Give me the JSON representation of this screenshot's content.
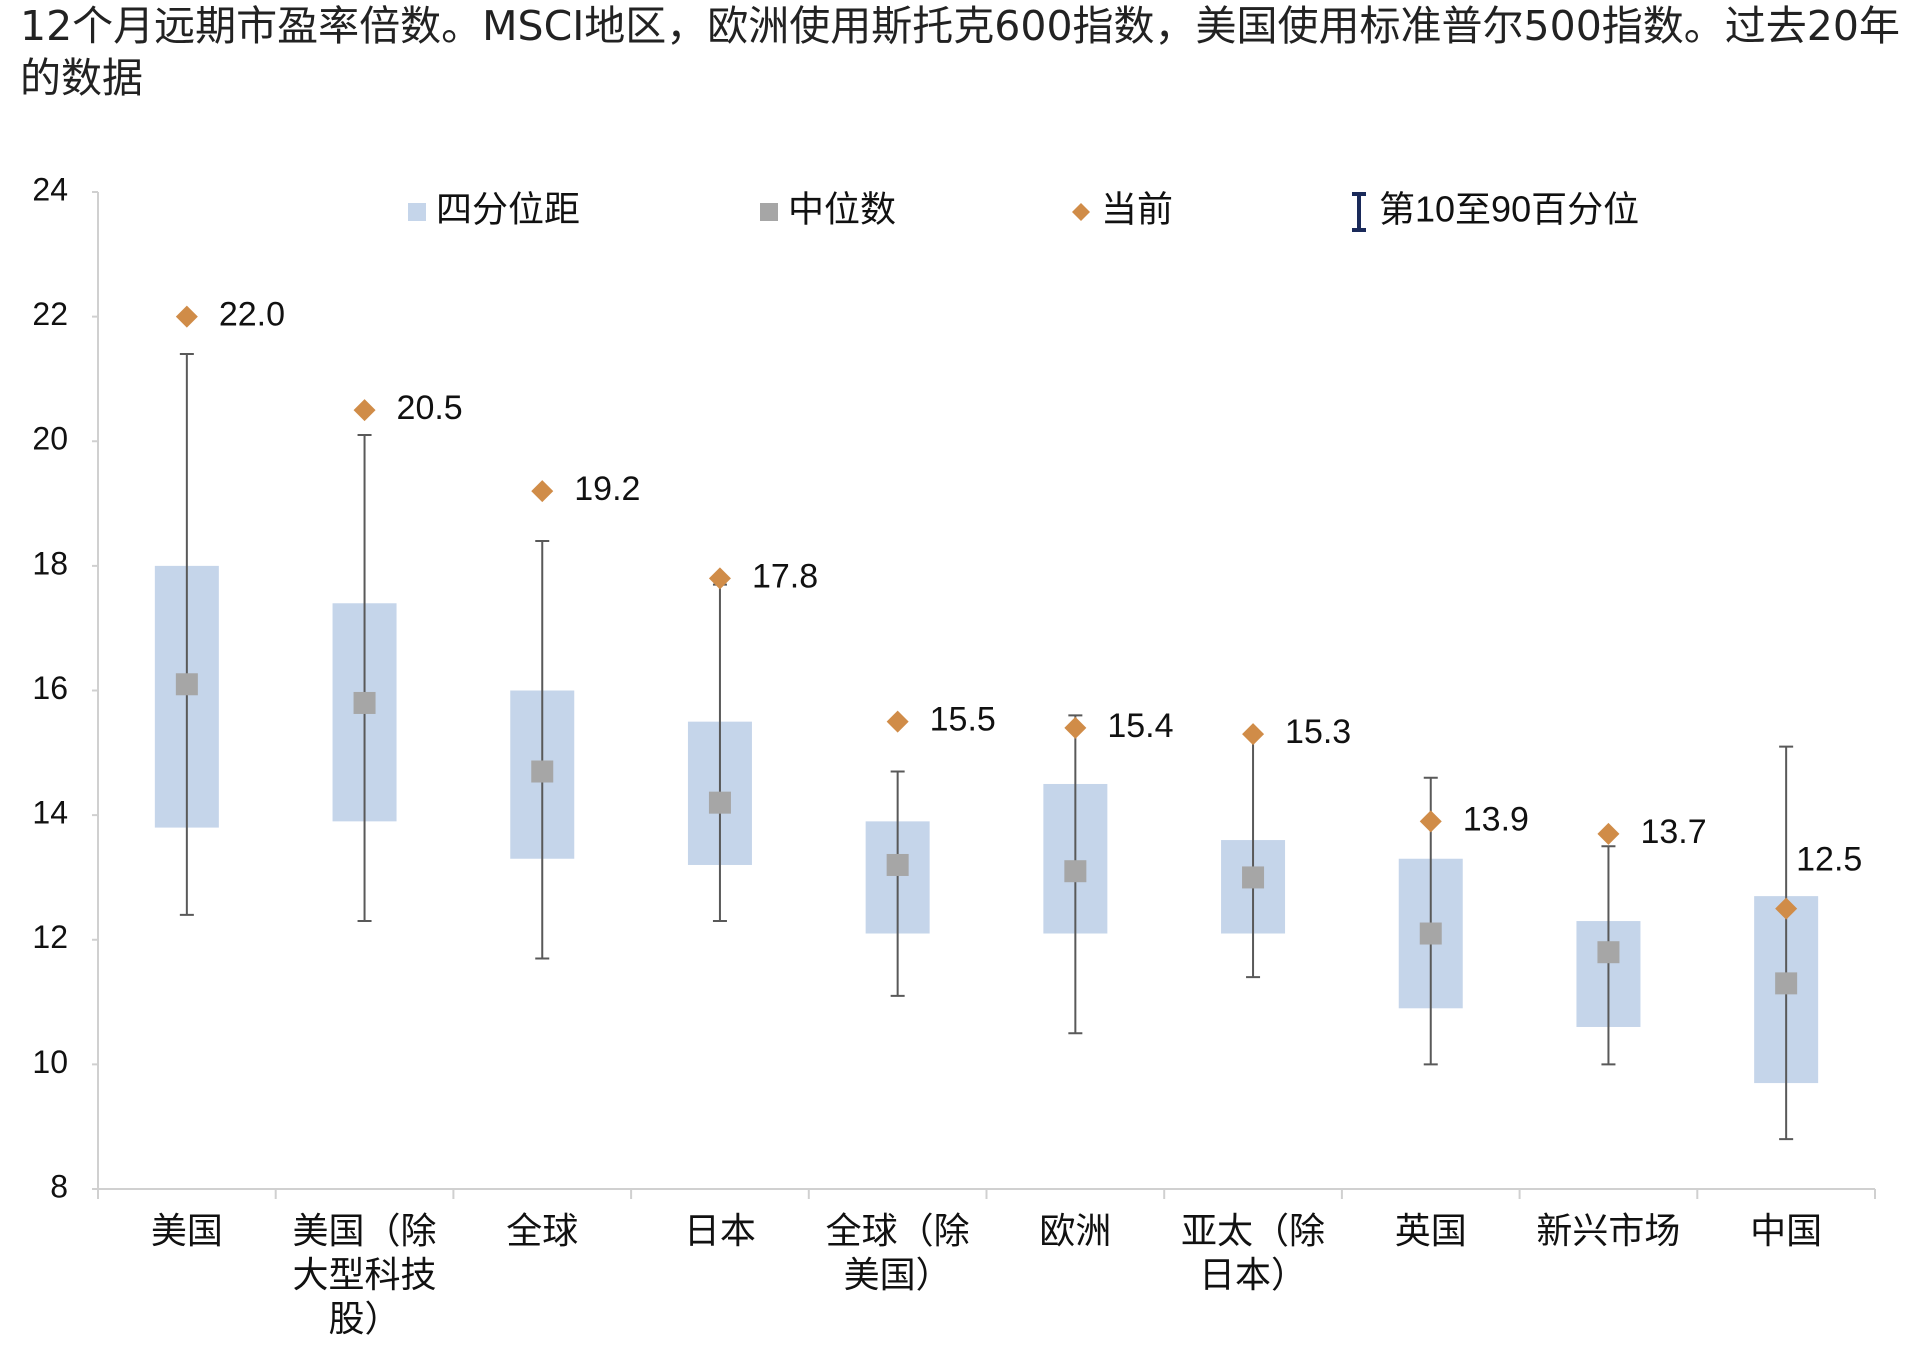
{
  "chart_data": {
    "type": "boxplot",
    "title": "12个月远期市盈率倍数。MSCI地区，欧洲使用斯托克600指数，美国使用标准普尔500指数。过去20年的数据",
    "categories": [
      "美国",
      "美国（除大型科技股）",
      "全球",
      "日本",
      "全球（除美国）",
      "欧洲",
      "亚太（除日本）",
      "英国",
      "新兴市场",
      "中国"
    ],
    "series": [
      {
        "name": "四分位距",
        "color": "#c5d5ea",
        "q1": [
          13.8,
          13.9,
          13.3,
          13.2,
          12.1,
          12.1,
          12.1,
          10.9,
          10.6,
          9.7
        ],
        "q3": [
          18.0,
          17.4,
          16.0,
          15.5,
          13.9,
          14.5,
          13.6,
          13.3,
          12.3,
          12.7
        ]
      },
      {
        "name": "中位数",
        "color": "#a6a6a6",
        "values": [
          16.1,
          15.8,
          14.7,
          14.2,
          13.2,
          13.1,
          13.0,
          12.1,
          11.8,
          11.3
        ]
      },
      {
        "name": "当前",
        "color": "#d08c48",
        "values": [
          22.0,
          20.5,
          19.2,
          17.8,
          15.5,
          15.4,
          15.3,
          13.9,
          13.7,
          12.5
        ],
        "value_labels": [
          "22.0",
          "20.5",
          "19.2",
          "17.8",
          "15.5",
          "15.4",
          "15.3",
          "13.9",
          "13.7",
          "12.5"
        ]
      },
      {
        "name": "第10至90百分位",
        "color": "#595959",
        "p10": [
          12.4,
          12.3,
          11.7,
          12.3,
          11.1,
          10.5,
          11.4,
          10.0,
          10.0,
          8.8
        ],
        "p90": [
          21.4,
          20.1,
          18.4,
          17.7,
          14.7,
          15.6,
          15.3,
          14.6,
          13.5,
          15.1
        ]
      }
    ],
    "ylim": [
      8,
      24
    ],
    "yticks": [
      8,
      10,
      12,
      14,
      16,
      18,
      20,
      22,
      24
    ],
    "grid": false
  }
}
